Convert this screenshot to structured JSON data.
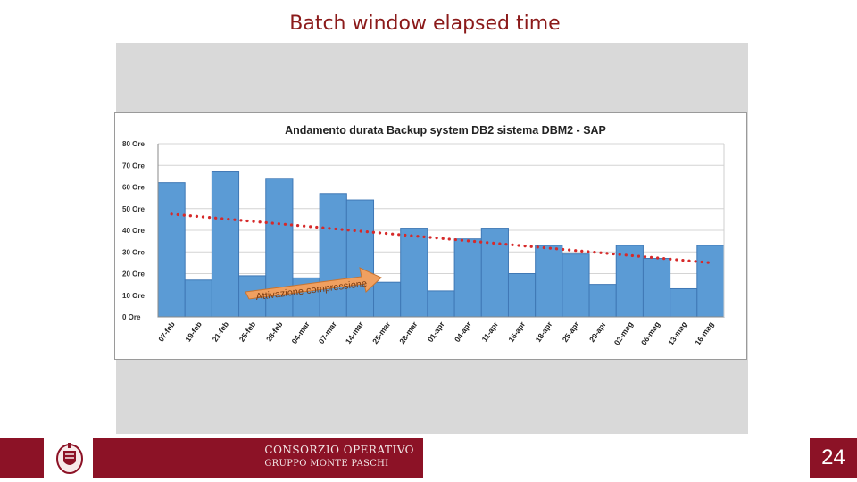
{
  "slide": {
    "title": "Batch window elapsed time",
    "page_number": "24"
  },
  "footer": {
    "brand_line1": "CONSORZIO OPERATIVO",
    "brand_line2": "GRUPPO MONTE PASCHI"
  },
  "colors": {
    "accent": "#8c1226",
    "bar_fill": "#5b9bd5",
    "bar_stroke": "#3f78b5",
    "trend": "#d62a2a",
    "callout_fill": "#f0a060"
  },
  "chart_data": {
    "type": "bar",
    "title": "Andamento durata Backup system DB2 sistema DBM2 - SAP",
    "xlabel": "",
    "ylabel": "",
    "ylim": [
      0,
      80
    ],
    "yticks": [
      {
        "value": 0,
        "label": "0 Ore"
      },
      {
        "value": 10,
        "label": "10 Ore"
      },
      {
        "value": 20,
        "label": "20 Ore"
      },
      {
        "value": 30,
        "label": "30 Ore"
      },
      {
        "value": 40,
        "label": "40 Ore"
      },
      {
        "value": 50,
        "label": "50 Ore"
      },
      {
        "value": 60,
        "label": "60 Ore"
      },
      {
        "value": 70,
        "label": "70 Ore"
      },
      {
        "value": 80,
        "label": "80 Ore"
      }
    ],
    "grid": true,
    "categories": [
      "07-feb",
      "19-feb",
      "21-feb",
      "25-feb",
      "28-feb",
      "04-mar",
      "07-mar",
      "14-mar",
      "25-mar",
      "28-mar",
      "01-apr",
      "04-apr",
      "11-apr",
      "16-apr",
      "18-apr",
      "25-apr",
      "29-apr",
      "02-mag",
      "06-mag",
      "13-mag",
      "16-mag"
    ],
    "values": [
      62,
      17,
      67,
      19,
      64,
      18,
      57,
      54,
      16,
      41,
      12,
      36,
      41,
      20,
      33,
      29,
      15,
      33,
      27,
      13,
      33
    ],
    "trend": {
      "style": "dotted",
      "start": 47.5,
      "end": 25
    },
    "annotations": [
      {
        "text": "Attivazione compressione",
        "points_to": "14-mar"
      }
    ]
  }
}
